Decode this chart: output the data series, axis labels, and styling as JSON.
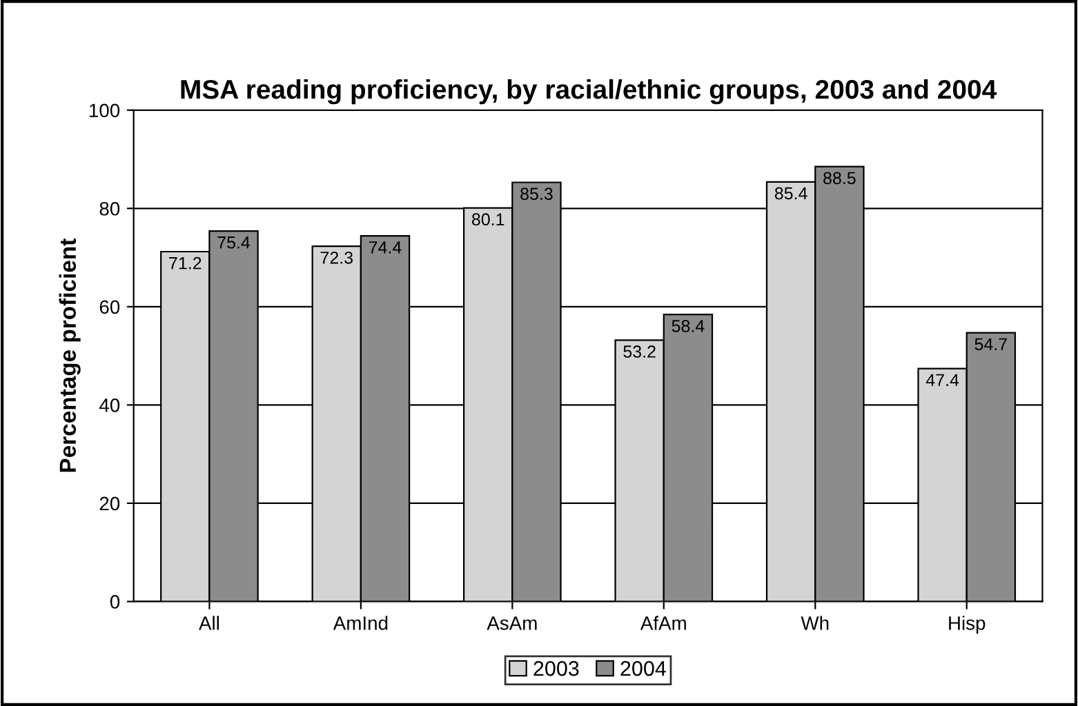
{
  "chart_data": {
    "type": "bar",
    "title": "MSA reading proficiency, by racial/ethnic groups, 2003 and 2004",
    "ylabel": "Percentage proficient",
    "categories": [
      "All",
      "AmInd",
      "AsAm",
      "AfAm",
      "Wh",
      "Hisp"
    ],
    "series": [
      {
        "name": "2003",
        "color": "#d4d4d4",
        "values": [
          71.2,
          72.3,
          80.1,
          53.2,
          85.4,
          47.4
        ]
      },
      {
        "name": "2004",
        "color": "#8c8c8c",
        "values": [
          75.4,
          74.4,
          85.3,
          58.4,
          88.5,
          54.7
        ]
      }
    ],
    "ylim": [
      0,
      100
    ],
    "yticks": [
      0,
      20,
      40,
      60,
      80,
      100
    ],
    "grid": "y",
    "legend": "bottom",
    "data_labels": true
  }
}
